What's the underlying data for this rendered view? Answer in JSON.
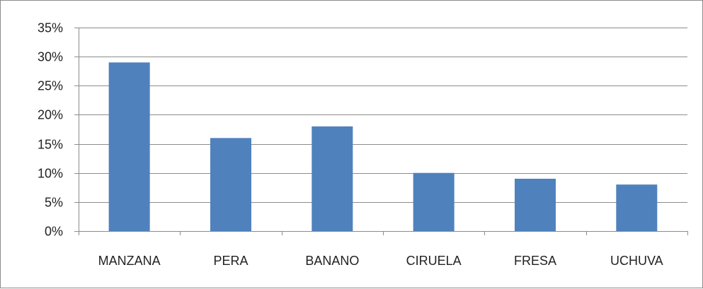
{
  "chart_data": {
    "type": "bar",
    "categories": [
      "MANZANA",
      "PERA",
      "BANANO",
      "CIRUELA",
      "FRESA",
      "UCHUVA"
    ],
    "values": [
      29,
      16,
      18,
      10,
      9,
      8
    ],
    "value_unit": "%",
    "ylim": [
      0,
      35
    ],
    "ytick_labels": [
      "0%",
      "5%",
      "10%",
      "15%",
      "20%",
      "25%",
      "30%",
      "35%"
    ],
    "title": "",
    "xlabel": "",
    "ylabel": "",
    "grid": true,
    "legend": "none",
    "colors": {
      "bar": "#4F81BD",
      "grid": "#8c8c8c",
      "axis": "#8c8c8c"
    }
  }
}
